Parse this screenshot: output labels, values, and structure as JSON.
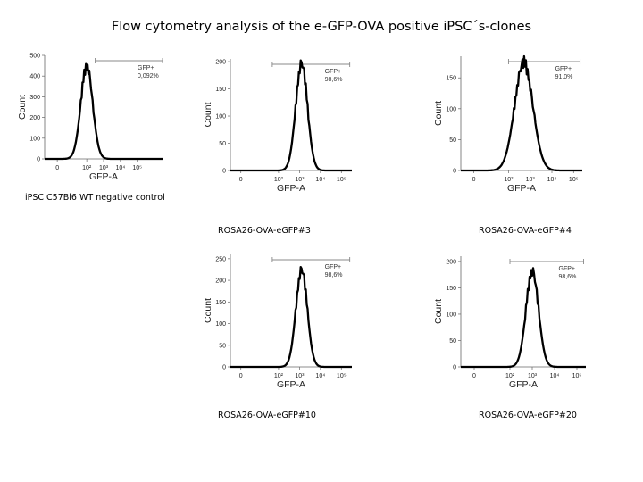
{
  "title": "Flow cytometry analysis of the e-GFP-OVA positive iPSC´s-clones",
  "panels": [
    {
      "caption": "iPSC C57Bl6 WT negative control",
      "gate_label": "GFP+",
      "gate_value": "0,092%"
    },
    {
      "caption": "ROSA26-OVA-eGFP#3",
      "gate_label": "GFP+",
      "gate_value": "98,6%"
    },
    {
      "caption": "ROSA26-OVA-eGFP#4",
      "gate_label": "GFP+",
      "gate_value": "91,0%"
    },
    {
      "caption": "ROSA26-OVA-eGFP#10",
      "gate_label": "GFP+",
      "gate_value": "98,6%"
    },
    {
      "caption": "ROSA26-OVA-eGFP#20",
      "gate_label": "GFP+",
      "gate_value": "98,6%"
    }
  ],
  "chart_data": [
    {
      "type": "histogram",
      "xlabel": "GFP-A",
      "ylabel": "Count",
      "x_scale": "log",
      "xlim": [
        -1,
        6
      ],
      "x_ticks": [
        "0",
        "10²",
        "10³",
        "10⁴",
        "10⁵"
      ],
      "ylim": [
        0,
        500
      ],
      "y_ticks": [
        0,
        100,
        200,
        300,
        400,
        500
      ],
      "gate": {
        "label": "GFP+",
        "value": "0,092%",
        "x_start": 2.0,
        "x_end": 6.0
      },
      "curve": {
        "peak_x": 1.5,
        "peak_y": 450,
        "width": 0.35
      }
    },
    {
      "type": "histogram",
      "xlabel": "GFP-A",
      "ylabel": "Count",
      "x_scale": "log",
      "xlim": [
        -0.5,
        5.3
      ],
      "x_ticks": [
        "0",
        "10²",
        "10³",
        "10⁴",
        "10⁵"
      ],
      "ylim": [
        0,
        205
      ],
      "y_ticks": [
        0,
        50,
        100,
        150,
        200
      ],
      "gate": {
        "label": "GFP+",
        "value": "98,6%",
        "x_start": 1.5,
        "x_end": 5.2
      },
      "curve": {
        "peak_x": 2.9,
        "peak_y": 197,
        "width": 0.28
      }
    },
    {
      "type": "histogram",
      "xlabel": "GFP-A",
      "ylabel": "Count",
      "x_scale": "log",
      "xlim": [
        -0.3,
        5.3
      ],
      "x_ticks": [
        "0",
        "10²",
        "10³",
        "10⁴",
        "10⁵"
      ],
      "ylim": [
        0,
        185
      ],
      "y_ticks": [
        0,
        50,
        100,
        150
      ],
      "gate": {
        "label": "GFP+",
        "value": "91,0%",
        "x_start": 1.9,
        "x_end": 5.2
      },
      "curve": {
        "peak_x": 2.6,
        "peak_y": 175,
        "width": 0.42
      }
    },
    {
      "type": "histogram",
      "xlabel": "GFP-A",
      "ylabel": "Count",
      "x_scale": "log",
      "xlim": [
        -0.5,
        5.3
      ],
      "x_ticks": [
        "0",
        "10²",
        "10³",
        "10⁴",
        "10⁵"
      ],
      "ylim": [
        0,
        260
      ],
      "y_ticks": [
        0,
        50,
        100,
        150,
        200,
        250
      ],
      "gate": {
        "label": "GFP+",
        "value": "98,6%",
        "x_start": 1.5,
        "x_end": 5.2
      },
      "curve": {
        "peak_x": 2.9,
        "peak_y": 225,
        "width": 0.27
      }
    },
    {
      "type": "histogram",
      "xlabel": "GFP-A",
      "ylabel": "Count",
      "x_scale": "log",
      "xlim": [
        -0.3,
        5.3
      ],
      "x_ticks": [
        "0",
        "10²",
        "10³",
        "10⁴",
        "10⁵"
      ],
      "ylim": [
        0,
        210
      ],
      "y_ticks": [
        0,
        50,
        100,
        150,
        200
      ],
      "gate": {
        "label": "GFP+",
        "value": "98,6%",
        "x_start": 1.9,
        "x_end": 5.2
      },
      "curve": {
        "peak_x": 2.9,
        "peak_y": 182,
        "width": 0.28
      }
    }
  ]
}
